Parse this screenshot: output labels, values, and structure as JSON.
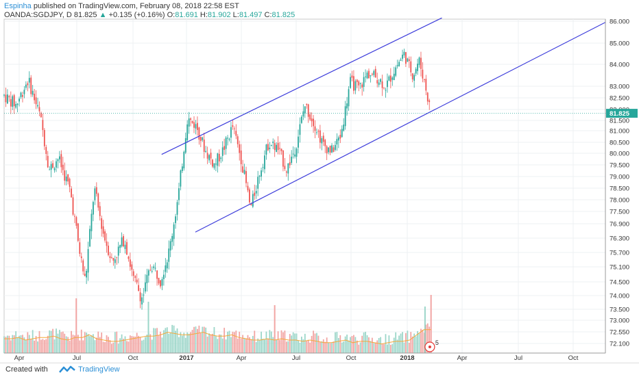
{
  "header": {
    "author": "Espinha",
    "published": "published on TradingView.com, February 08, 2018 22:58 EST",
    "symbol": "OANDA:SGDJPY, D",
    "last": "81.825",
    "change_arrow": "▲",
    "change": "+0.135 (+0.16%)",
    "o_label": "O:",
    "o_value": "81.691",
    "h_label": "H:",
    "h_value": "81.902",
    "l_label": "L:",
    "l_value": "81.497",
    "c_label": "C:",
    "c_value": "81.825"
  },
  "footer": {
    "created_with": "Created with",
    "brand": "TradingView",
    "logo_icon": "tradingview-logo-icon"
  },
  "colors": {
    "up": "#26a69a",
    "down": "#ef5350",
    "trendline": "#3d3ddb",
    "price_tag": "#26a69a",
    "ma": "#f4a83a"
  },
  "chart_data": {
    "type": "candlestick",
    "symbol": "OANDA:SGDJPY",
    "interval": "D",
    "y_ticks": [
      "86.000",
      "85.000",
      "84.000",
      "83.000",
      "82.500",
      "82.000",
      "81.500",
      "81.000",
      "80.500",
      "80.000",
      "79.500",
      "79.000",
      "78.500",
      "78.000",
      "77.500",
      "76.900",
      "76.300",
      "75.700",
      "75.100",
      "74.500",
      "74.000",
      "73.500",
      "73.000",
      "72.550",
      "72.100"
    ],
    "x_ticks": [
      "Apr",
      "Jul",
      "Oct",
      "2017",
      "Apr",
      "Jul",
      "Oct",
      "2018",
      "Apr",
      "Jul",
      "Oct"
    ],
    "last_price_label": "81.825",
    "last_price": 81.825,
    "volume_alert_count": "5",
    "price_path": [
      {
        "t": 0.0,
        "p": 82.6
      },
      {
        "t": 0.02,
        "p": 82.2
      },
      {
        "t": 0.04,
        "p": 83.3
      },
      {
        "t": 0.06,
        "p": 81.7
      },
      {
        "t": 0.075,
        "p": 79.3
      },
      {
        "t": 0.09,
        "p": 79.8
      },
      {
        "t": 0.11,
        "p": 78.4
      },
      {
        "t": 0.125,
        "p": 75.8
      },
      {
        "t": 0.135,
        "p": 74.5
      },
      {
        "t": 0.15,
        "p": 78.5
      },
      {
        "t": 0.165,
        "p": 76.5
      },
      {
        "t": 0.18,
        "p": 75.3
      },
      {
        "t": 0.2,
        "p": 76.3
      },
      {
        "t": 0.215,
        "p": 74.6
      },
      {
        "t": 0.23,
        "p": 73.9
      },
      {
        "t": 0.245,
        "p": 75.2
      },
      {
        "t": 0.26,
        "p": 74.6
      },
      {
        "t": 0.275,
        "p": 75.8
      },
      {
        "t": 0.29,
        "p": 78.2
      },
      {
        "t": 0.305,
        "p": 81.6
      },
      {
        "t": 0.32,
        "p": 81.2
      },
      {
        "t": 0.335,
        "p": 80.1
      },
      {
        "t": 0.35,
        "p": 79.5
      },
      {
        "t": 0.365,
        "p": 80.2
      },
      {
        "t": 0.38,
        "p": 81.2
      },
      {
        "t": 0.395,
        "p": 79.7
      },
      {
        "t": 0.41,
        "p": 77.6
      },
      {
        "t": 0.425,
        "p": 79.2
      },
      {
        "t": 0.44,
        "p": 80.5
      },
      {
        "t": 0.455,
        "p": 80.2
      },
      {
        "t": 0.47,
        "p": 79.3
      },
      {
        "t": 0.485,
        "p": 80.3
      },
      {
        "t": 0.5,
        "p": 82.2
      },
      {
        "t": 0.515,
        "p": 81.4
      },
      {
        "t": 0.53,
        "p": 80.4
      },
      {
        "t": 0.545,
        "p": 80.1
      },
      {
        "t": 0.56,
        "p": 80.8
      },
      {
        "t": 0.575,
        "p": 83.2
      },
      {
        "t": 0.59,
        "p": 82.9
      },
      {
        "t": 0.605,
        "p": 83.6
      },
      {
        "t": 0.62,
        "p": 83.4
      },
      {
        "t": 0.635,
        "p": 83.0
      },
      {
        "t": 0.65,
        "p": 83.8
      },
      {
        "t": 0.665,
        "p": 84.5
      },
      {
        "t": 0.68,
        "p": 83.5
      },
      {
        "t": 0.69,
        "p": 84.2
      },
      {
        "t": 0.7,
        "p": 83.1
      },
      {
        "t": 0.71,
        "p": 81.8
      }
    ],
    "volume_profile": [
      0.55,
      0.6,
      0.5,
      0.55,
      0.6,
      0.65,
      0.55,
      0.5,
      0.6,
      0.7,
      0.55,
      0.5,
      0.45,
      0.5,
      0.55,
      0.6,
      0.65,
      0.7,
      0.8,
      0.75,
      0.7,
      0.75,
      0.8,
      0.7,
      0.65,
      0.7,
      0.6,
      0.55,
      0.5,
      0.55,
      0.5,
      0.55,
      0.5,
      0.45,
      0.5,
      0.45,
      0.4,
      0.45,
      0.5,
      0.4,
      0.45,
      0.4,
      0.35,
      0.4,
      0.45,
      0.5,
      0.7,
      0.9
    ],
    "trendlines": [
      {
        "name": "channel-upper",
        "p1": {
          "t": 0.262,
          "p": 79.95
        },
        "p2": {
          "t": 0.728,
          "p": 86.15
        }
      },
      {
        "name": "channel-lower",
        "p1": {
          "t": 0.318,
          "p": 76.55
        },
        "p2": {
          "t": 1.0,
          "p": 85.95
        }
      }
    ]
  }
}
